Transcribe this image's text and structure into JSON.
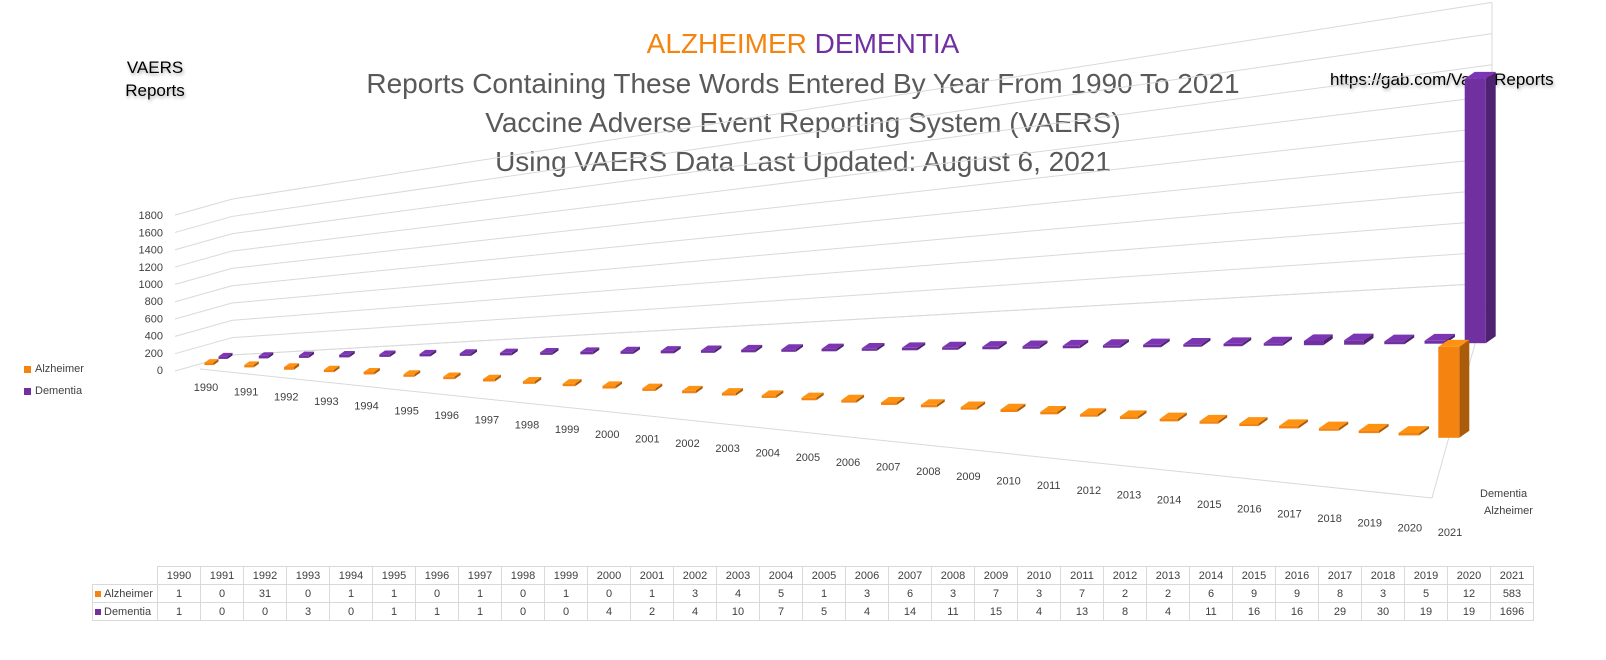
{
  "header": {
    "title_word1": "ALZHEIMER",
    "title_word2": "DEMENTIA",
    "subtitle1": "Reports Containing These Words Entered By Year From 1990 To 2021",
    "subtitle2": "Vaccine Adverse Event Reporting System (VAERS)",
    "subtitle3": "Using VAERS Data Last Updated: August 6, 2021",
    "left_label": "VAERS Reports",
    "right_label": "https://gab.com/VaersReports"
  },
  "colors": {
    "alzheimer": "#f4830f",
    "dementia": "#7030a0"
  },
  "chart_data": {
    "type": "bar",
    "categories": [
      "1990",
      "1991",
      "1992",
      "1993",
      "1994",
      "1995",
      "1996",
      "1997",
      "1998",
      "1999",
      "2000",
      "2001",
      "2002",
      "2003",
      "2004",
      "2005",
      "2006",
      "2007",
      "2008",
      "2009",
      "2010",
      "2011",
      "2012",
      "2013",
      "2014",
      "2015",
      "2016",
      "2017",
      "2018",
      "2019",
      "2020",
      "2021"
    ],
    "series": [
      {
        "name": "Alzheimer",
        "values": [
          1,
          0,
          31,
          0,
          1,
          1,
          0,
          1,
          0,
          1,
          0,
          1,
          3,
          4,
          5,
          1,
          3,
          6,
          3,
          7,
          3,
          7,
          2,
          2,
          6,
          9,
          9,
          8,
          3,
          5,
          12,
          583
        ]
      },
      {
        "name": "Dementia",
        "values": [
          1,
          0,
          0,
          3,
          0,
          1,
          1,
          1,
          0,
          0,
          4,
          2,
          4,
          10,
          7,
          5,
          4,
          14,
          11,
          15,
          4,
          13,
          8,
          4,
          11,
          16,
          16,
          29,
          30,
          19,
          19,
          1696
        ]
      }
    ],
    "ylim": [
      0,
      1800
    ],
    "yticks": [
      0,
      200,
      400,
      600,
      800,
      1000,
      1200,
      1400,
      1600,
      1800
    ],
    "grid": true,
    "legend": "left",
    "style": "3d-column",
    "data_table": true
  }
}
